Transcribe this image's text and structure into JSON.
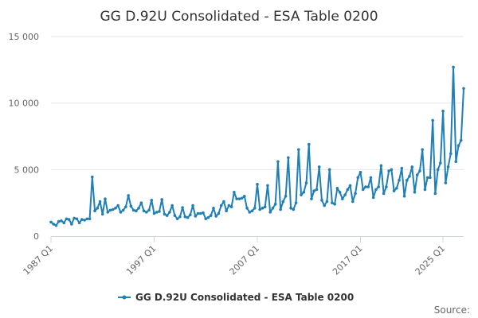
{
  "chart_data": {
    "type": "line",
    "title": "GG D.92U Consolidated - ESA Table 0200",
    "source_label": "Source:",
    "series": [
      {
        "name": "GG D.92U Consolidated - ESA Table 0200",
        "color": "#1f7fb6",
        "start": "1987 Q1",
        "values": [
          1050,
          900,
          800,
          1100,
          1150,
          1000,
          1300,
          1250,
          900,
          1350,
          1300,
          1000,
          1250,
          1200,
          1300,
          1300,
          4450,
          1900,
          2100,
          2600,
          1650,
          2800,
          1800,
          1950,
          2000,
          2100,
          2300,
          1800,
          1950,
          2200,
          3050,
          2250,
          1950,
          1900,
          2100,
          2500,
          1900,
          1800,
          1950,
          2700,
          1700,
          1800,
          1850,
          2750,
          1650,
          1550,
          1800,
          2300,
          1550,
          1300,
          1450,
          2150,
          1450,
          1400,
          1600,
          2300,
          1500,
          1700,
          1700,
          1750,
          1300,
          1400,
          1550,
          2100,
          1500,
          1700,
          2300,
          2600,
          1900,
          2300,
          2200,
          3300,
          2800,
          2800,
          2850,
          3000,
          2100,
          1800,
          1900,
          2100,
          3900,
          2000,
          2100,
          2200,
          3800,
          1800,
          2100,
          2400,
          5600,
          2000,
          2600,
          3000,
          5900,
          2100,
          2000,
          2500,
          6500,
          3100,
          3300,
          4000,
          6900,
          2800,
          3400,
          3500,
          5200,
          2700,
          2300,
          2600,
          5000,
          2500,
          2400,
          3600,
          3300,
          2800,
          3100,
          3500,
          3800,
          2600,
          3200,
          4400,
          4800,
          3500,
          3700,
          3700,
          4400,
          2900,
          3500,
          3700,
          5300,
          3200,
          3700,
          4900,
          5000,
          3400,
          3600,
          4200,
          5100,
          3000,
          4200,
          4500,
          5200,
          3300,
          4600,
          4900,
          6500,
          3500,
          4400,
          4400,
          8700,
          3200,
          5000,
          5500,
          9400,
          4000,
          5200,
          6200,
          12700,
          5600,
          6800,
          7200,
          11100
        ]
      }
    ],
    "x_tick_labels": [
      "1987 Q1",
      "1997 Q1",
      "2007 Q1",
      "2017 Q1",
      "2025 Q1"
    ],
    "x_tick_index": [
      0,
      40,
      80,
      120,
      152
    ],
    "y_ticks": [
      0,
      5000,
      10000,
      15000
    ],
    "y_tick_labels": [
      "0",
      "5 000",
      "10 000",
      "15 000"
    ],
    "ylim": [
      0,
      15000
    ],
    "grid": true,
    "legend_position": "bottom-center"
  }
}
